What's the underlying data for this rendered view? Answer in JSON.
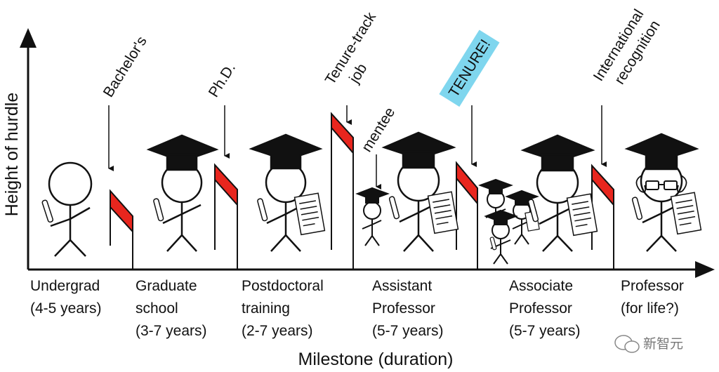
{
  "axes": {
    "y_title": "Height of hurdle",
    "x_title": "Milestone (duration)"
  },
  "stages": [
    {
      "lines": [
        "Undergrad",
        "(4-5 years)"
      ]
    },
    {
      "lines": [
        "Graduate",
        "school",
        "(3-7 years)"
      ]
    },
    {
      "lines": [
        "Postdoctoral",
        "training",
        "(2-7 years)"
      ]
    },
    {
      "lines": [
        "Assistant",
        "Professor",
        "(5-7 years)"
      ]
    },
    {
      "lines": [
        "Associate",
        "Professor",
        "(5-7 years)"
      ]
    },
    {
      "lines": [
        "Professor",
        "(for life?)"
      ]
    }
  ],
  "milestones": [
    {
      "lines": [
        "Bachelor's"
      ]
    },
    {
      "lines": [
        "Ph.D."
      ]
    },
    {
      "lines": [
        "Tenure-track",
        "job"
      ]
    },
    {
      "lines": [
        "TENURE!"
      ],
      "highlight": "#7fd6ee"
    },
    {
      "lines": [
        "International",
        "recognition"
      ]
    }
  ],
  "annotations": {
    "mentee": "mentee"
  },
  "watermark": "新智元",
  "colors": {
    "hurdle_stripe": "#e8261e",
    "ink": "#111111"
  }
}
